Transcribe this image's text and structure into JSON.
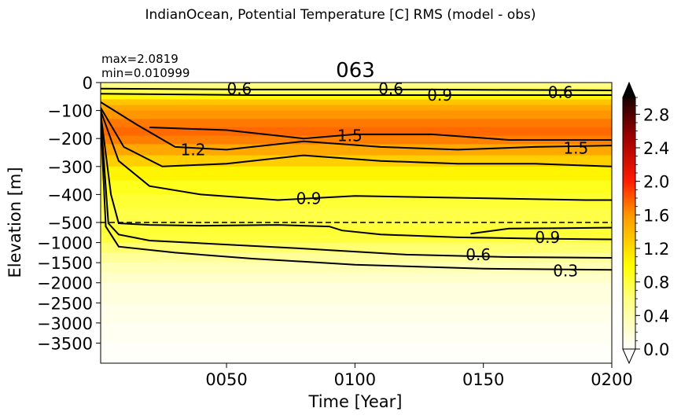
{
  "chart_data": {
    "type": "heatmap",
    "suptitle": "IndianOcean, Potential Temperature [C] RMS (model - obs)",
    "title": "063",
    "stats": [
      "max=2.0819",
      "min=0.010999"
    ],
    "xlabel": "Time [Year]",
    "ylabel": "Elevation [m]",
    "xlim": [
      1,
      200
    ],
    "x_ticks": [
      {
        "value": 50,
        "label": "0050"
      },
      {
        "value": 100,
        "label": "0100"
      },
      {
        "value": 150,
        "label": "0150"
      },
      {
        "value": 200,
        "label": "0200"
      }
    ],
    "upper_ylim": [
      -500,
      0
    ],
    "upper_y_ticks": [
      {
        "value": 0,
        "label": "0"
      },
      {
        "value": -100,
        "label": "−100"
      },
      {
        "value": -200,
        "label": "−200"
      },
      {
        "value": -300,
        "label": "−300"
      },
      {
        "value": -400,
        "label": "−400"
      },
      {
        "value": -500,
        "label": "−500"
      }
    ],
    "lower_ylim": [
      -4000,
      -500
    ],
    "lower_y_ticks": [
      {
        "value": -1000,
        "label": "−1000"
      },
      {
        "value": -1500,
        "label": "−1500"
      },
      {
        "value": -2000,
        "label": "−2000"
      },
      {
        "value": -2500,
        "label": "−2500"
      },
      {
        "value": -3000,
        "label": "−3000"
      },
      {
        "value": -3500,
        "label": "−3500"
      }
    ],
    "colorbar": {
      "range": [
        0,
        3.0
      ],
      "extend": "both",
      "ticks": [
        {
          "value": 0.0,
          "label": "0.0"
        },
        {
          "value": 0.4,
          "label": "0.4"
        },
        {
          "value": 0.8,
          "label": "0.8"
        },
        {
          "value": 1.2,
          "label": "1.2"
        },
        {
          "value": 1.6,
          "label": "1.6"
        },
        {
          "value": 2.0,
          "label": "2.0"
        },
        {
          "value": 2.4,
          "label": "2.4"
        },
        {
          "value": 2.8,
          "label": "2.8"
        }
      ],
      "colormap": "hot_r"
    },
    "depth_profile": [
      {
        "depth": 0,
        "value": 0.55
      },
      {
        "depth": 10,
        "value": 0.55
      },
      {
        "depth": 20,
        "value": 0.65
      },
      {
        "depth": 40,
        "value": 0.85
      },
      {
        "depth": 60,
        "value": 1.2
      },
      {
        "depth": 80,
        "value": 1.45
      },
      {
        "depth": 100,
        "value": 1.55
      },
      {
        "depth": 130,
        "value": 1.65
      },
      {
        "depth": 160,
        "value": 1.75
      },
      {
        "depth": 190,
        "value": 1.75
      },
      {
        "depth": 220,
        "value": 1.6
      },
      {
        "depth": 260,
        "value": 1.4
      },
      {
        "depth": 300,
        "value": 1.15
      },
      {
        "depth": 350,
        "value": 0.95
      },
      {
        "depth": 400,
        "value": 0.85
      },
      {
        "depth": 450,
        "value": 0.8
      },
      {
        "depth": 500,
        "value": 0.75
      },
      {
        "depth": 600,
        "value": 0.8
      },
      {
        "depth": 800,
        "value": 0.85
      },
      {
        "depth": 1000,
        "value": 0.75
      },
      {
        "depth": 1250,
        "value": 0.55
      },
      {
        "depth": 1500,
        "value": 0.4
      },
      {
        "depth": 1750,
        "value": 0.3
      },
      {
        "depth": 2000,
        "value": 0.2
      },
      {
        "depth": 2500,
        "value": 0.12
      },
      {
        "depth": 3000,
        "value": 0.08
      },
      {
        "depth": 3500,
        "value": 0.04
      },
      {
        "depth": 4000,
        "value": 0.01
      }
    ],
    "contours": [
      {
        "level": 0.6,
        "points": [
          [
            1,
            -22
          ],
          [
            60,
            -25
          ],
          [
            130,
            -25
          ],
          [
            200,
            -28
          ]
        ]
      },
      {
        "level": 0.9,
        "points": [
          [
            1,
            -40
          ],
          [
            60,
            -45
          ],
          [
            130,
            -45
          ],
          [
            200,
            -45
          ]
        ]
      },
      {
        "level": 1.2,
        "points": [
          [
            1,
            -70
          ],
          [
            15,
            -150
          ],
          [
            30,
            -230
          ],
          [
            50,
            -240
          ],
          [
            80,
            -210
          ],
          [
            110,
            -230
          ],
          [
            140,
            -240
          ],
          [
            170,
            -230
          ],
          [
            200,
            -225
          ]
        ]
      },
      {
        "level": 1.5,
        "points": [
          [
            20,
            -160
          ],
          [
            50,
            -170
          ],
          [
            80,
            -200
          ],
          [
            100,
            -185
          ],
          [
            130,
            -185
          ],
          [
            160,
            -205
          ],
          [
            200,
            -205
          ]
        ]
      },
      {
        "level": 1.2,
        "points": [
          [
            1,
            -90
          ],
          [
            10,
            -230
          ],
          [
            25,
            -300
          ],
          [
            50,
            -290
          ],
          [
            80,
            -260
          ],
          [
            110,
            -280
          ],
          [
            140,
            -290
          ],
          [
            170,
            -290
          ],
          [
            200,
            -300
          ]
        ]
      },
      {
        "level": 0.9,
        "points": [
          [
            1,
            -100
          ],
          [
            8,
            -280
          ],
          [
            20,
            -370
          ],
          [
            40,
            -400
          ],
          [
            70,
            -420
          ],
          [
            100,
            -405
          ],
          [
            130,
            -410
          ],
          [
            160,
            -415
          ],
          [
            190,
            -420
          ],
          [
            200,
            -420
          ]
        ]
      },
      {
        "level": 0.6,
        "points": [
          [
            1,
            -110
          ],
          [
            5,
            -400
          ],
          [
            8,
            -520
          ],
          [
            20,
            -560
          ],
          [
            40,
            -580
          ],
          [
            70,
            -560
          ],
          [
            90,
            -600
          ],
          [
            95,
            -700
          ],
          [
            110,
            -800
          ],
          [
            140,
            -870
          ],
          [
            170,
            -900
          ],
          [
            200,
            -920
          ]
        ]
      },
      {
        "level": 0.9,
        "points": [
          [
            145,
            -780
          ],
          [
            160,
            -650
          ],
          [
            180,
            -640
          ],
          [
            200,
            -630
          ]
        ]
      },
      {
        "level": 0.6,
        "points": [
          [
            1,
            -120
          ],
          [
            4,
            -520
          ],
          [
            8,
            -800
          ],
          [
            20,
            -950
          ],
          [
            50,
            -1050
          ],
          [
            80,
            -1150
          ],
          [
            120,
            -1300
          ],
          [
            160,
            -1360
          ],
          [
            200,
            -1380
          ]
        ]
      },
      {
        "level": 0.3,
        "points": [
          [
            1,
            -130
          ],
          [
            3,
            -600
          ],
          [
            8,
            -1100
          ],
          [
            30,
            -1250
          ],
          [
            60,
            -1400
          ],
          [
            100,
            -1550
          ],
          [
            150,
            -1650
          ],
          [
            200,
            -1680
          ]
        ]
      }
    ],
    "contour_labels": [
      {
        "text": "0.6",
        "x": 55,
        "y": -22
      },
      {
        "text": "0.6",
        "x": 114,
        "y": -22
      },
      {
        "text": "0.9",
        "x": 133,
        "y": -45
      },
      {
        "text": "0.6",
        "x": 180,
        "y": -35
      },
      {
        "text": "1.2",
        "x": 37,
        "y": -240
      },
      {
        "text": "1.5",
        "x": 98,
        "y": -190
      },
      {
        "text": "1.5",
        "x": 186,
        "y": -235
      },
      {
        "text": "0.9",
        "x": 82,
        "y": -415
      },
      {
        "text": "0.9",
        "x": 175,
        "y": -870
      },
      {
        "text": "0.6",
        "x": 148,
        "y": -1300
      },
      {
        "text": "0.3",
        "x": 182,
        "y": -1700
      }
    ]
  }
}
